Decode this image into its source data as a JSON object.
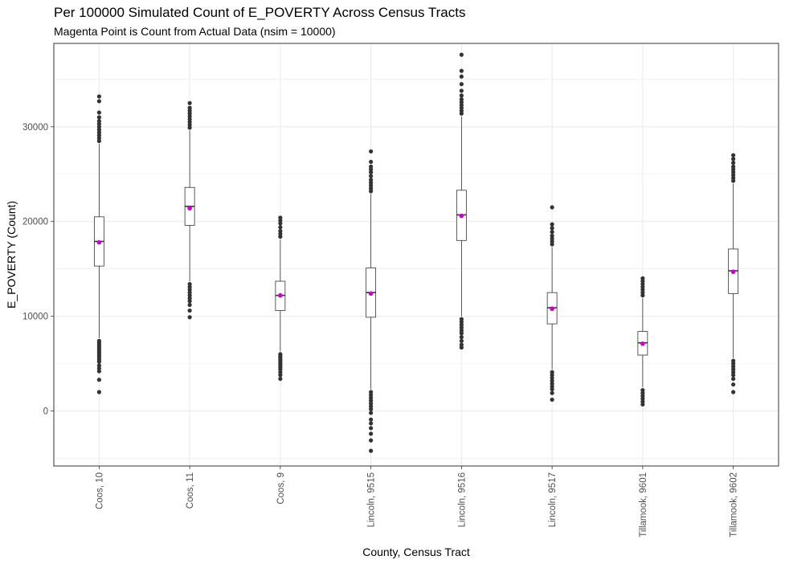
{
  "chart_data": {
    "type": "box",
    "title": "Per 100000 Simulated Count of E_POVERTY Across Census Tracts",
    "subtitle": "Magenta Point is Count from Actual Data (nsim = 10000)",
    "xlabel": "County, Census Tract",
    "ylabel": "E_POVERTY (Count)",
    "ylim": [
      -5800,
      38800
    ],
    "yticks": [
      0,
      10000,
      20000,
      30000
    ],
    "grid": true,
    "categories": [
      "Coos, 10",
      "Coos, 11",
      "Coos, 9",
      "Lincoln, 9515",
      "Lincoln, 9516",
      "Lincoln, 9517",
      "Tillamook, 9601",
      "Tillamook, 9602"
    ],
    "boxes": [
      {
        "category": "Coos, 10",
        "whisker_low": 7700,
        "q1": 15300,
        "median": 17900,
        "q3": 20500,
        "whisker_high": 28200,
        "actual": 17800,
        "outliers_low": [
          7400,
          7200,
          7000,
          6800,
          6600,
          6400,
          6200,
          6000,
          5800,
          5600,
          5400,
          5200,
          4800,
          4500,
          4200,
          3300,
          2000
        ],
        "outliers_high": [
          28500,
          28800,
          29100,
          29400,
          29700,
          30000,
          30300,
          30600,
          31000,
          31500,
          32700,
          33200
        ]
      },
      {
        "category": "Coos, 11",
        "whisker_low": 13700,
        "q1": 19600,
        "median": 21600,
        "q3": 23600,
        "whisker_high": 29600,
        "actual": 21400,
        "outliers_low": [
          13400,
          13100,
          12800,
          12500,
          12200,
          11900,
          11600,
          11200,
          10600,
          9900
        ],
        "outliers_high": [
          29900,
          30200,
          30500,
          30800,
          31100,
          31400,
          31700,
          32000,
          32500
        ]
      },
      {
        "category": "Coos, 9",
        "whisker_low": 6300,
        "q1": 10600,
        "median": 12200,
        "q3": 13700,
        "whisker_high": 18100,
        "actual": 12200,
        "outliers_low": [
          6000,
          5800,
          5600,
          5400,
          5200,
          5000,
          4800,
          4600,
          4400,
          4100,
          3800,
          3400
        ],
        "outliers_high": [
          18400,
          18700,
          19000,
          19400,
          19800,
          20100,
          20400
        ]
      },
      {
        "category": "Lincoln, 9515",
        "whisker_low": 2300,
        "q1": 9900,
        "median": 12500,
        "q3": 15100,
        "whisker_high": 22900,
        "actual": 12400,
        "outliers_low": [
          2000,
          1700,
          1400,
          1100,
          800,
          500,
          200,
          -200,
          -900,
          -1300,
          -1800,
          -2400,
          -3100,
          -4200
        ],
        "outliers_high": [
          23200,
          23500,
          23800,
          24100,
          24400,
          24800,
          25200,
          25500,
          25800,
          26300,
          27400
        ]
      },
      {
        "category": "Lincoln, 9516",
        "whisker_low": 10000,
        "q1": 18000,
        "median": 20700,
        "q3": 23300,
        "whisker_high": 31100,
        "actual": 20600,
        "outliers_low": [
          9700,
          9400,
          9100,
          8800,
          8500,
          8200,
          7800,
          7400,
          7000,
          6700
        ],
        "outliers_high": [
          31400,
          31700,
          32000,
          32300,
          32600,
          32900,
          33300,
          33800,
          34500,
          35300,
          35900,
          37600
        ]
      },
      {
        "category": "Lincoln, 9517",
        "whisker_low": 4400,
        "q1": 9200,
        "median": 10900,
        "q3": 12500,
        "whisker_high": 17300,
        "actual": 10800,
        "outliers_low": [
          4100,
          3800,
          3500,
          3200,
          2900,
          2600,
          2300,
          1900,
          1200
        ],
        "outliers_high": [
          17600,
          17900,
          18200,
          18500,
          18900,
          19300,
          19700,
          21500
        ]
      },
      {
        "category": "Tillamook, 9601",
        "whisker_low": 2500,
        "q1": 5900,
        "median": 7200,
        "q3": 8400,
        "whisker_high": 11900,
        "actual": 7100,
        "outliers_low": [
          2200,
          1900,
          1600,
          1300,
          1000,
          700
        ],
        "outliers_high": [
          12200,
          12500,
          12800,
          13100,
          13400,
          13700,
          14000
        ]
      },
      {
        "category": "Tillamook, 9602",
        "whisker_low": 5600,
        "q1": 12400,
        "median": 14800,
        "q3": 17100,
        "whisker_high": 24000,
        "actual": 14700,
        "outliers_low": [
          5300,
          5000,
          4700,
          4400,
          4100,
          3800,
          3400,
          2800,
          2000
        ],
        "outliers_high": [
          24300,
          24600,
          24900,
          25200,
          25500,
          25800,
          26200,
          26600,
          27000
        ]
      }
    ],
    "colors": {
      "actual_point": "#cc00cc",
      "box_line": "#333333",
      "outlier": "#333333",
      "grid": "#ebebeb",
      "panel_border": "#333333"
    }
  }
}
